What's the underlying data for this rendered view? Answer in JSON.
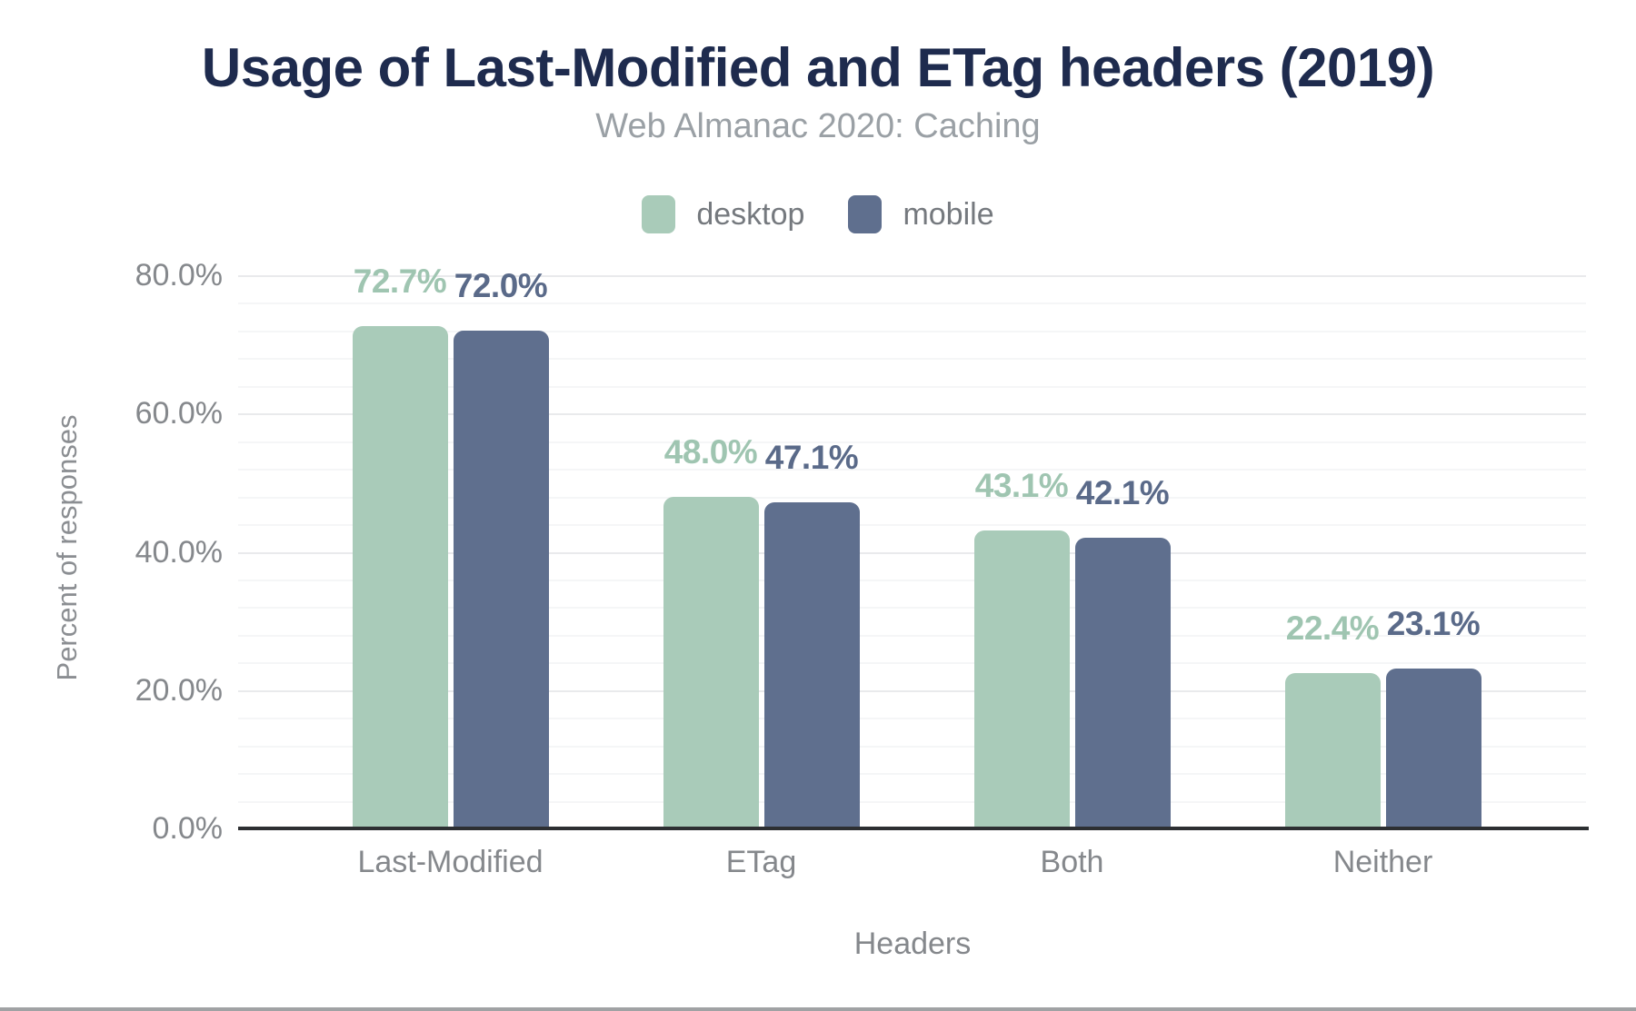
{
  "chart_data": {
    "type": "bar",
    "title": "Usage of Last-Modified and ETag headers (2019)",
    "subtitle": "Web Almanac 2020: Caching",
    "xlabel": "Headers",
    "ylabel": "Percent of responses",
    "categories": [
      "Last-Modified",
      "ETag",
      "Both",
      "Neither"
    ],
    "series": [
      {
        "name": "desktop",
        "color": "#a9cbb9",
        "label_color": "#9fc5b1",
        "values": [
          72.7,
          48.0,
          43.1,
          22.4
        ],
        "value_labels": [
          "72.7%",
          "48.0%",
          "43.1%",
          "22.4%"
        ]
      },
      {
        "name": "mobile",
        "color": "#5f6f8e",
        "label_color": "#5a6a89",
        "values": [
          72.0,
          47.1,
          42.1,
          23.1
        ],
        "value_labels": [
          "72.0%",
          "47.1%",
          "42.1%",
          "23.1%"
        ]
      }
    ],
    "ylim": [
      0,
      80
    ],
    "yticks": [
      {
        "value": 0,
        "label": "0.0%"
      },
      {
        "value": 20,
        "label": "20.0%"
      },
      {
        "value": 40,
        "label": "40.0%"
      },
      {
        "value": 60,
        "label": "60.0%"
      },
      {
        "value": 80,
        "label": "80.0%"
      }
    ],
    "grid": {
      "major_step": 20,
      "minor_step": 4,
      "on": true
    },
    "legend_position": "top"
  },
  "colors": {
    "background": "#ffffff",
    "title": "#1e2b4e",
    "subtitle": "#9aa0a5",
    "axis_line": "#2d2f32",
    "tick_text": "#85888c",
    "gridline_major": "#e9eaec",
    "gridline_minor": "#f5f6f7",
    "bottom_strip": "#a0a2a4"
  }
}
